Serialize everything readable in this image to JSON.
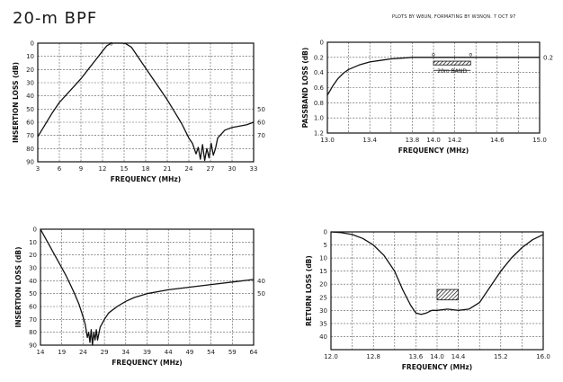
{
  "header": {
    "title": "20-m BPF",
    "credits": "PLOTS BY W8UN, FORMATING BY W3NQN.  7 OCT 97"
  },
  "chart_data": [
    {
      "type": "line",
      "xlabel": "FREQUENCY (MHz)",
      "ylabel": "INSERTION LOSS (dB)",
      "xlim": [
        3,
        33
      ],
      "ylim": [
        0,
        90
      ],
      "y_inverted": true,
      "x_ticks": [
        3,
        6,
        9,
        12,
        15,
        18,
        21,
        24,
        27,
        30,
        33
      ],
      "x_tick_labels": [
        "3",
        "6",
        "9",
        "12",
        "15",
        "18",
        "21",
        "24",
        "27",
        "30",
        "33"
      ],
      "y_ticks": [
        0,
        10,
        20,
        30,
        40,
        50,
        60,
        70,
        80,
        90
      ],
      "y_tick_labels": [
        "0",
        "10",
        "20",
        "30",
        "40",
        "50",
        "60",
        "70",
        "80",
        "90"
      ],
      "right_labels": [
        {
          "y": 50,
          "text": "50"
        },
        {
          "y": 60,
          "text": "60"
        },
        {
          "y": 70,
          "text": "70"
        }
      ],
      "grid": true,
      "x": [
        3,
        4,
        5,
        6,
        7,
        8,
        9,
        10,
        11,
        12,
        12.6,
        13.2,
        14,
        14.6,
        15.2,
        16,
        16.5,
        17,
        18,
        19,
        20,
        21,
        22,
        23,
        24,
        24.5,
        25,
        25.3,
        25.6,
        25.9,
        26.2,
        26.5,
        26.8,
        27.1,
        27.4,
        27.7,
        28,
        29,
        30,
        31,
        32,
        33
      ],
      "y": [
        71,
        62,
        53,
        45,
        39,
        33,
        27,
        20,
        13,
        6,
        2,
        0,
        0,
        0,
        0.3,
        3,
        7,
        11,
        19,
        27,
        35,
        43,
        52,
        61,
        72,
        76,
        84,
        79,
        88,
        77,
        89,
        80,
        87,
        76,
        85,
        80,
        72,
        66,
        64,
        63,
        62,
        60
      ],
      "annotations": [
        {
          "x": 13.2,
          "y": 0.5,
          "text": "o"
        }
      ]
    },
    {
      "type": "line",
      "xlabel": "FREQUENCY (MHz)",
      "ylabel": "PASSBAND LOSS (dB)",
      "xlim": [
        13.0,
        15.0
      ],
      "ylim": [
        0,
        1.2
      ],
      "y_inverted": true,
      "x_ticks": [
        13.0,
        13.2,
        13.4,
        13.6,
        13.8,
        14.0,
        14.2,
        14.4,
        14.6,
        14.8,
        15.0
      ],
      "x_tick_labels": [
        "13.0",
        "",
        "13.4",
        "",
        "13.8",
        "14.0",
        "14.2",
        "",
        "14.6",
        "",
        "15.0"
      ],
      "y_ticks": [
        0,
        0.2,
        0.4,
        0.6,
        0.8,
        1.0,
        1.2
      ],
      "y_tick_labels": [
        "0",
        "0.2",
        "0.4",
        "0.6",
        "0.8",
        "1.0",
        "1.2"
      ],
      "right_labels": [
        {
          "y": 0.2,
          "text": "0.2"
        }
      ],
      "grid": true,
      "x": [
        13.0,
        13.05,
        13.1,
        13.15,
        13.2,
        13.3,
        13.4,
        13.5,
        13.6,
        13.7,
        13.8,
        14.0,
        14.2,
        14.4,
        14.6,
        14.8,
        15.0
      ],
      "y": [
        0.7,
        0.58,
        0.48,
        0.41,
        0.36,
        0.3,
        0.26,
        0.24,
        0.22,
        0.21,
        0.2,
        0.2,
        0.2,
        0.2,
        0.2,
        0.2,
        0.2
      ],
      "band": {
        "x0": 14.0,
        "x1": 14.35,
        "y0": 0.25,
        "y1": 0.3,
        "label": "20m BAND"
      },
      "annotations": [
        {
          "x": 14.0,
          "y": 0.16,
          "text": "o"
        },
        {
          "x": 14.35,
          "y": 0.16,
          "text": "o"
        }
      ]
    },
    {
      "type": "line",
      "xlabel": "FREQUENCY (MHz)",
      "ylabel": "INSERTION LOSS (dB)",
      "xlim": [
        14,
        64
      ],
      "ylim": [
        0,
        90
      ],
      "y_inverted": true,
      "x_ticks": [
        14,
        19,
        24,
        29,
        34,
        39,
        44,
        49,
        54,
        59,
        64
      ],
      "x_tick_labels": [
        "14",
        "19",
        "24",
        "29",
        "34",
        "39",
        "44",
        "49",
        "54",
        "59",
        "64"
      ],
      "y_ticks": [
        0,
        10,
        20,
        30,
        40,
        50,
        60,
        70,
        80,
        90
      ],
      "y_tick_labels": [
        "0",
        "10",
        "20",
        "30",
        "40",
        "50",
        "60",
        "70",
        "80",
        "90"
      ],
      "right_labels": [
        {
          "y": 40,
          "text": "40"
        },
        {
          "y": 50,
          "text": "50"
        }
      ],
      "grid": true,
      "x": [
        14,
        15,
        16,
        17,
        18,
        19,
        20,
        21,
        22,
        23,
        24,
        24.5,
        25,
        25.3,
        25.6,
        25.9,
        26.2,
        26.5,
        26.8,
        27.1,
        27.4,
        28,
        29,
        30,
        32,
        34,
        36,
        39,
        44,
        49,
        54,
        59,
        64
      ],
      "y": [
        0,
        6,
        12,
        18,
        24,
        30,
        36,
        43,
        50,
        58,
        68,
        74,
        84,
        80,
        88,
        78,
        90,
        80,
        86,
        78,
        86,
        76,
        70,
        65,
        60,
        56,
        53,
        50,
        47,
        45,
        43,
        41,
        39
      ]
    },
    {
      "type": "line",
      "xlabel": "FREQUENCY (MHz)",
      "ylabel": "RETURN LOSS (dB)",
      "xlim": [
        12.0,
        16.0
      ],
      "ylim": [
        0,
        45
      ],
      "y_inverted": true,
      "x_ticks": [
        12.0,
        12.4,
        12.8,
        13.2,
        13.6,
        14.0,
        14.4,
        14.8,
        15.2,
        15.6,
        16.0
      ],
      "x_tick_labels": [
        "12.0",
        "",
        "12.8",
        "",
        "13.6",
        "14.0",
        "14.4",
        "",
        "15.2",
        "",
        "16.0"
      ],
      "y_ticks": [
        0,
        5,
        10,
        15,
        20,
        25,
        30,
        35,
        40,
        45
      ],
      "y_tick_labels": [
        "0",
        "5",
        "10",
        "15",
        "20",
        "25",
        "30",
        "35",
        "40",
        ""
      ],
      "right_labels": [],
      "grid": true,
      "x": [
        12.0,
        12.2,
        12.4,
        12.6,
        12.8,
        13.0,
        13.2,
        13.35,
        13.5,
        13.6,
        13.7,
        13.8,
        13.9,
        14.0,
        14.2,
        14.4,
        14.6,
        14.8,
        15.0,
        15.2,
        15.4,
        15.6,
        15.8,
        16.0
      ],
      "y": [
        0,
        0.3,
        1,
        2.5,
        5,
        9,
        15,
        22,
        28,
        31,
        31.5,
        31,
        30,
        30,
        29.5,
        30,
        29.5,
        27,
        21,
        15,
        10,
        6,
        3,
        1
      ],
      "band": {
        "x0": 14.0,
        "x1": 14.4,
        "y0": 22,
        "y1": 26,
        "label": ""
      }
    }
  ]
}
